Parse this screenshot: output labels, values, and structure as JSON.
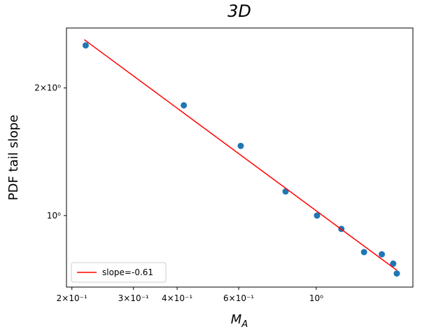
{
  "chart_data": {
    "type": "scatter",
    "title": "3D",
    "x_label": "M",
    "x_label_subscript": "A",
    "y_label": "PDF tail slope",
    "log_x": true,
    "log_y": true,
    "legend": "lower left",
    "xlim": [
      0.193,
      1.89
    ],
    "ylim": [
      0.678,
      2.77
    ],
    "xticks": [
      {
        "value": 0.2,
        "label": "2×10⁻¹"
      },
      {
        "value": 0.3,
        "label": "3×10⁻¹"
      },
      {
        "value": 0.4,
        "label": "4×10⁻¹"
      },
      {
        "value": 0.6,
        "label": "6×10⁻¹"
      },
      {
        "value": 1,
        "label": "10⁰"
      }
    ],
    "yticks": [
      {
        "value": 1,
        "label": "10⁰"
      },
      {
        "value": 2,
        "label": "2×10⁰"
      }
    ],
    "series": [
      {
        "color": "#1f77b4",
        "kind": "scatter",
        "x": [
          0.219,
          0.418,
          0.608,
          0.817,
          1.005,
          1.18,
          1.37,
          1.54,
          1.66,
          1.7
        ],
        "values": [
          2.52,
          1.82,
          1.46,
          1.14,
          1.0,
          0.93,
          0.82,
          0.81,
          0.77,
          0.73
        ]
      },
      {
        "name": "slope=-0.61",
        "color": "#ff0000",
        "kind": "line",
        "x": [
          0.217,
          1.7
        ],
        "values": [
          2.6,
          0.743
        ]
      }
    ]
  }
}
